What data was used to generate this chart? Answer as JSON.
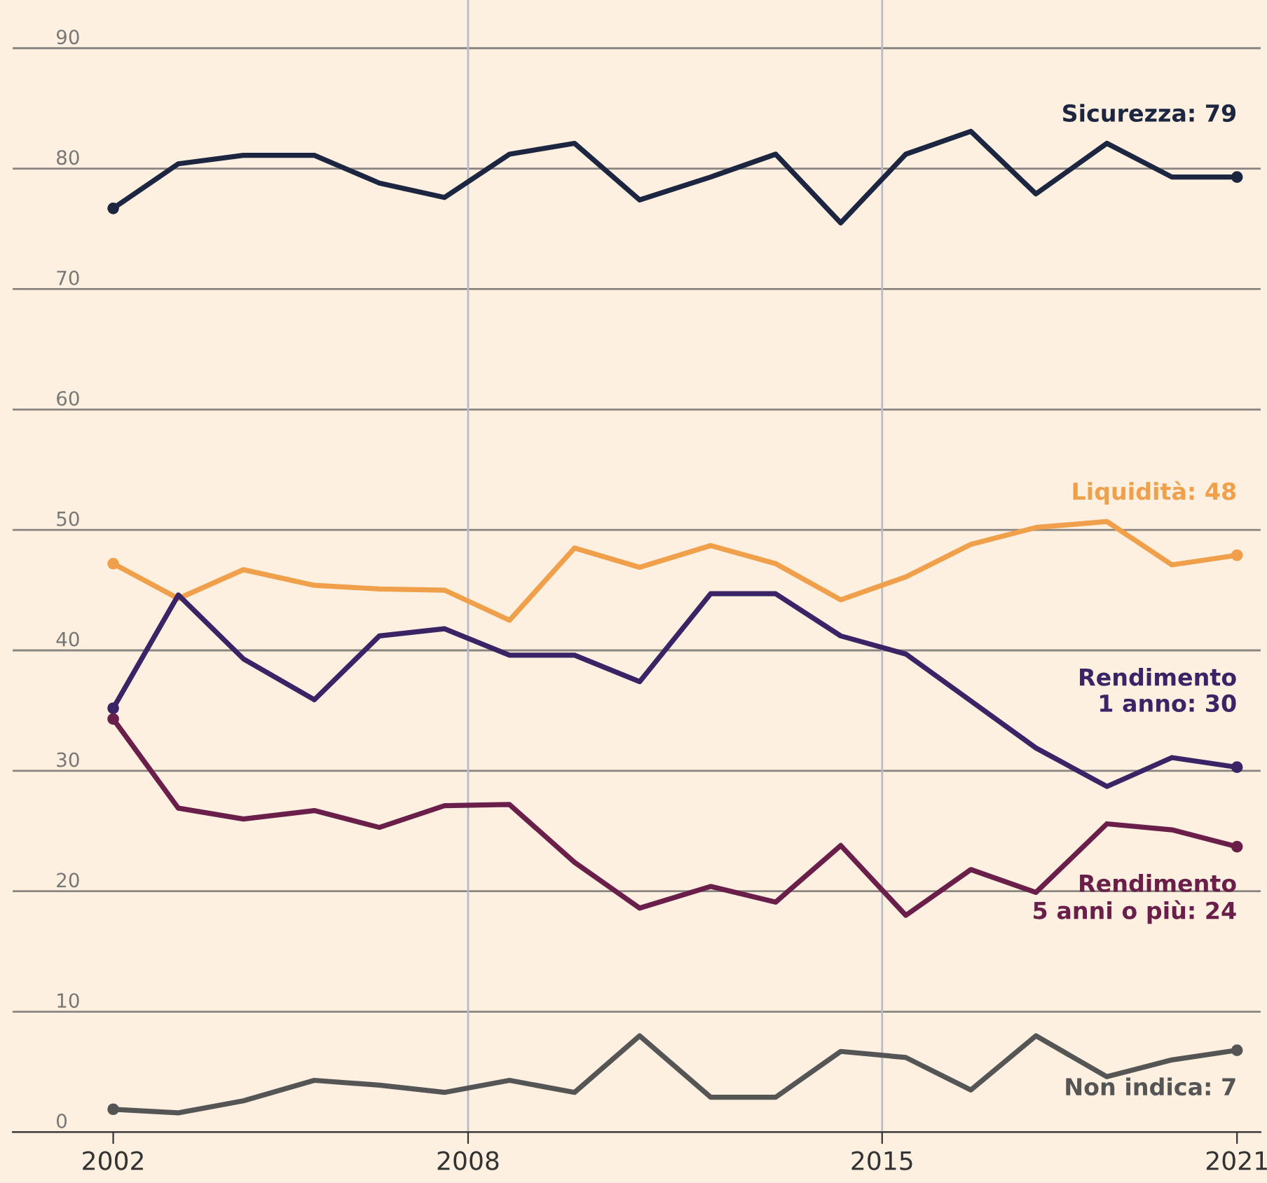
{
  "chart_data": {
    "type": "line",
    "x": [
      2002,
      2003.1,
      2004.2,
      2005.4,
      2006.5,
      2007.6,
      2008.7,
      2009.8,
      2010.9,
      2012.1,
      2013.2,
      2014.3,
      2015.4,
      2016.5,
      2017.6,
      2018.8,
      2019.9,
      2021
    ],
    "series": [
      {
        "name": "Sicurezza: 79",
        "color": "#1c2640",
        "values": [
          76.7,
          80.4,
          81.1,
          81.1,
          78.8,
          77.6,
          81.2,
          82.1,
          77.4,
          79.3,
          81.2,
          75.5,
          81.2,
          83.1,
          77.9,
          82.1,
          79.3,
          79.3
        ]
      },
      {
        "name": "Liquidità: 48",
        "color": "#f0a04a",
        "values": [
          47.2,
          44.3,
          46.7,
          45.4,
          45.1,
          45.0,
          42.5,
          48.5,
          46.9,
          48.7,
          47.2,
          44.2,
          46.1,
          48.8,
          50.2,
          50.7,
          47.1,
          47.9
        ]
      },
      {
        "name": "Rendimento\n1 anno: 30",
        "color": "#3a2466",
        "values": [
          35.2,
          44.6,
          39.3,
          35.9,
          41.2,
          41.8,
          39.6,
          39.6,
          37.4,
          44.7,
          44.7,
          41.2,
          39.7,
          35.8,
          31.9,
          28.7,
          31.1,
          30.3
        ]
      },
      {
        "name": "Rendimento\n5 anni o più: 24",
        "color": "#6a1f4a",
        "values": [
          34.3,
          26.9,
          26.0,
          26.7,
          25.3,
          27.1,
          27.2,
          22.4,
          18.6,
          20.4,
          19.1,
          23.8,
          18.0,
          21.8,
          19.9,
          25.6,
          25.1,
          23.7
        ]
      },
      {
        "name": "Non indica: 7",
        "color": "#555555",
        "values": [
          1.9,
          1.6,
          2.6,
          4.3,
          3.9,
          3.3,
          4.3,
          3.3,
          8.0,
          2.9,
          2.9,
          6.7,
          6.2,
          3.5,
          8.0,
          4.6,
          6.0,
          6.8
        ]
      }
    ],
    "xlim": [
      2000.3,
      2021.4
    ],
    "xticks": [
      2002,
      2008,
      2015,
      2021
    ],
    "ylim": [
      0,
      94
    ],
    "yticks": [
      0,
      10,
      20,
      30,
      40,
      50,
      60,
      70,
      80,
      90
    ],
    "grid": "y",
    "legend": false,
    "ref_lines": [
      {
        "axis": "x",
        "value": 2008,
        "color": "#b8bcc8"
      },
      {
        "axis": "x",
        "value": 2015,
        "color": "#b8bcc8"
      }
    ]
  }
}
